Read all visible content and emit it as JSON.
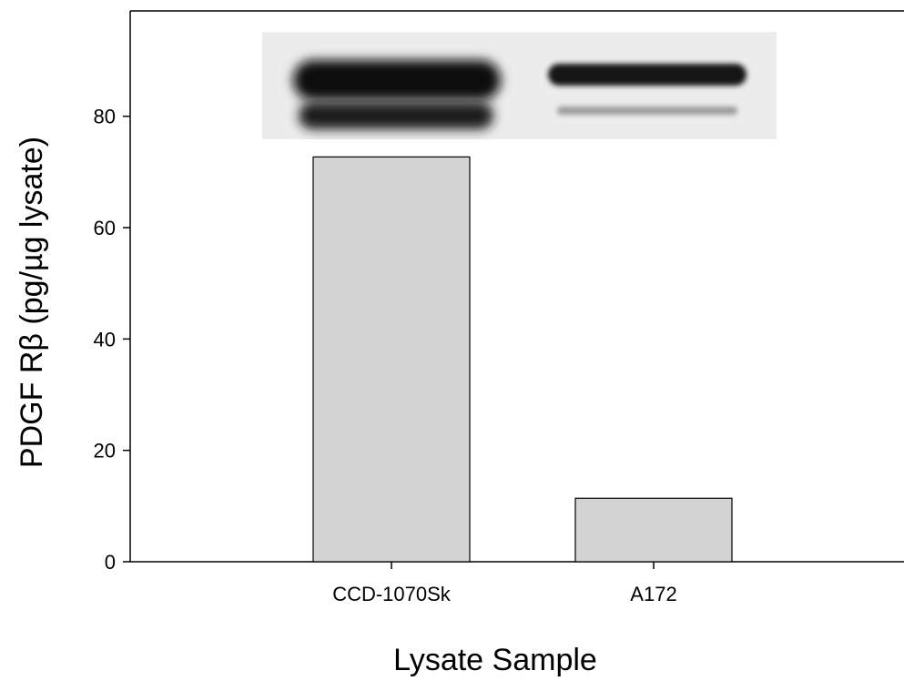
{
  "chart_data": {
    "type": "bar",
    "categories": [
      "CCD-1070Sk",
      "A172"
    ],
    "values": [
      72.7,
      11.4
    ],
    "title": "",
    "xlabel": "Lysate Sample",
    "ylabel": "PDGF Rβ (pg/µg lysate)",
    "ylim": [
      0,
      100
    ],
    "yticks": [
      0,
      20,
      40,
      60,
      80
    ],
    "bar_color": "#d3d3d3",
    "bar_edge_color": "#000000",
    "grid": false,
    "legend": "none",
    "inset": {
      "type": "western-blot-image",
      "lanes": [
        {
          "category": "CCD-1070Sk",
          "band_intensity": "strong"
        },
        {
          "category": "A172",
          "band_intensity": "weak"
        }
      ]
    }
  }
}
